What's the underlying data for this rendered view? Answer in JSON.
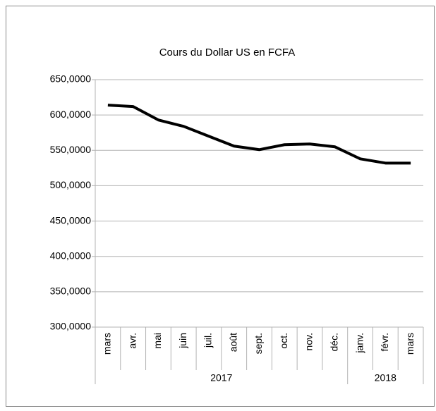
{
  "chart_data": {
    "type": "line",
    "title": "Cours du Dollar US en FCFA",
    "categories": [
      "mars",
      "avr.",
      "mai",
      "juin",
      "juil.",
      "août",
      "sept.",
      "oct.",
      "nov.",
      "déc.",
      "janv.",
      "févr.",
      "mars"
    ],
    "category_groups": [
      {
        "label": "2017",
        "span": 10
      },
      {
        "label": "2018",
        "span": 3
      }
    ],
    "series": [
      {
        "name": "Cours",
        "color": "#000000",
        "values": [
          614,
          612,
          593,
          584,
          570,
          556,
          551,
          558,
          559,
          555,
          538,
          532,
          532
        ]
      }
    ],
    "ylim": [
      300,
      650
    ],
    "yticks": [
      {
        "value": 300,
        "label": "300,0000"
      },
      {
        "value": 350,
        "label": "350,0000"
      },
      {
        "value": 400,
        "label": "400,0000"
      },
      {
        "value": 450,
        "label": "450,0000"
      },
      {
        "value": 500,
        "label": "500,0000"
      },
      {
        "value": 550,
        "label": "550,0000"
      },
      {
        "value": 600,
        "label": "600,0000"
      },
      {
        "value": 650,
        "label": "650,0000"
      }
    ],
    "grid": true
  }
}
